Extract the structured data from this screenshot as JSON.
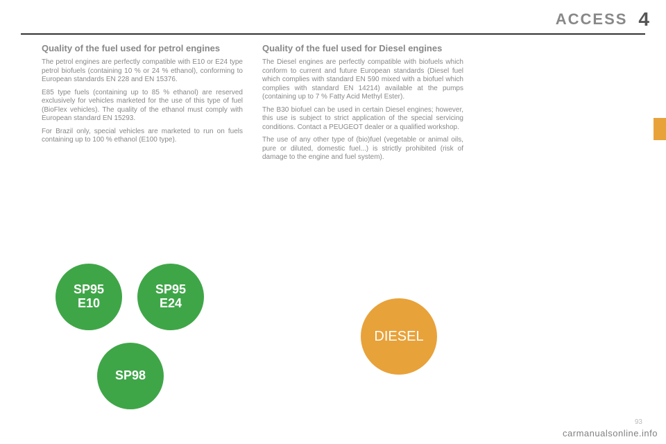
{
  "header": {
    "title": "ACCESS",
    "chapter": "4"
  },
  "columns": {
    "petrol": {
      "title": "Quality of the fuel used for petrol engines",
      "p1": "The petrol engines are perfectly compatible with E10 or E24 type petrol biofuels (containing 10 % or 24 % ethanol), conforming to European standards EN 228 and EN 15376.",
      "p2": "E85 type fuels (containing up to 85 % ethanol) are reserved exclusively for vehicles marketed for the use of this type of fuel (BioFlex vehicles). The quality of the ethanol must comply with European standard EN 15293.",
      "p3": "For Brazil only, special vehicles are marketed to run on fuels containing up to 100 % ethanol (E100 type)."
    },
    "diesel": {
      "title": "Quality of the fuel used for Diesel engines",
      "p1": "The Diesel engines are perfectly compatible with biofuels which conform to current and future European standards (Diesel fuel which complies with standard EN 590 mixed with a biofuel which complies with standard EN 14214) available at the pumps (containing up to 7 % Fatty Acid Methyl Ester).",
      "p2": "The B30 biofuel can be used in certain Diesel engines; however, this use is subject to strict application of the special servicing conditions. Contact a PEUGEOT dealer or a qualified workshop.",
      "p3": "The use of any other type of (bio)fuel (vegetable or animal oils, pure or diluted, domestic fuel...) is strictly prohibited (risk of damage to the engine and fuel system)."
    }
  },
  "circles": {
    "c1": {
      "line1": "SP95",
      "line2": "E10",
      "color": "#3fa648"
    },
    "c2": {
      "line1": "SP95",
      "line2": "E24",
      "color": "#3fa648"
    },
    "c3": {
      "line1": "SP98",
      "line2": "",
      "color": "#3fa648"
    },
    "diesel": {
      "label": "DIESEL",
      "color": "#e8a23a"
    }
  },
  "colors": {
    "text_muted": "#888888",
    "rule": "#333333",
    "tab": "#e8a23a"
  },
  "footer": {
    "watermark": "carmanualsonline.info",
    "pagenum": "93"
  }
}
